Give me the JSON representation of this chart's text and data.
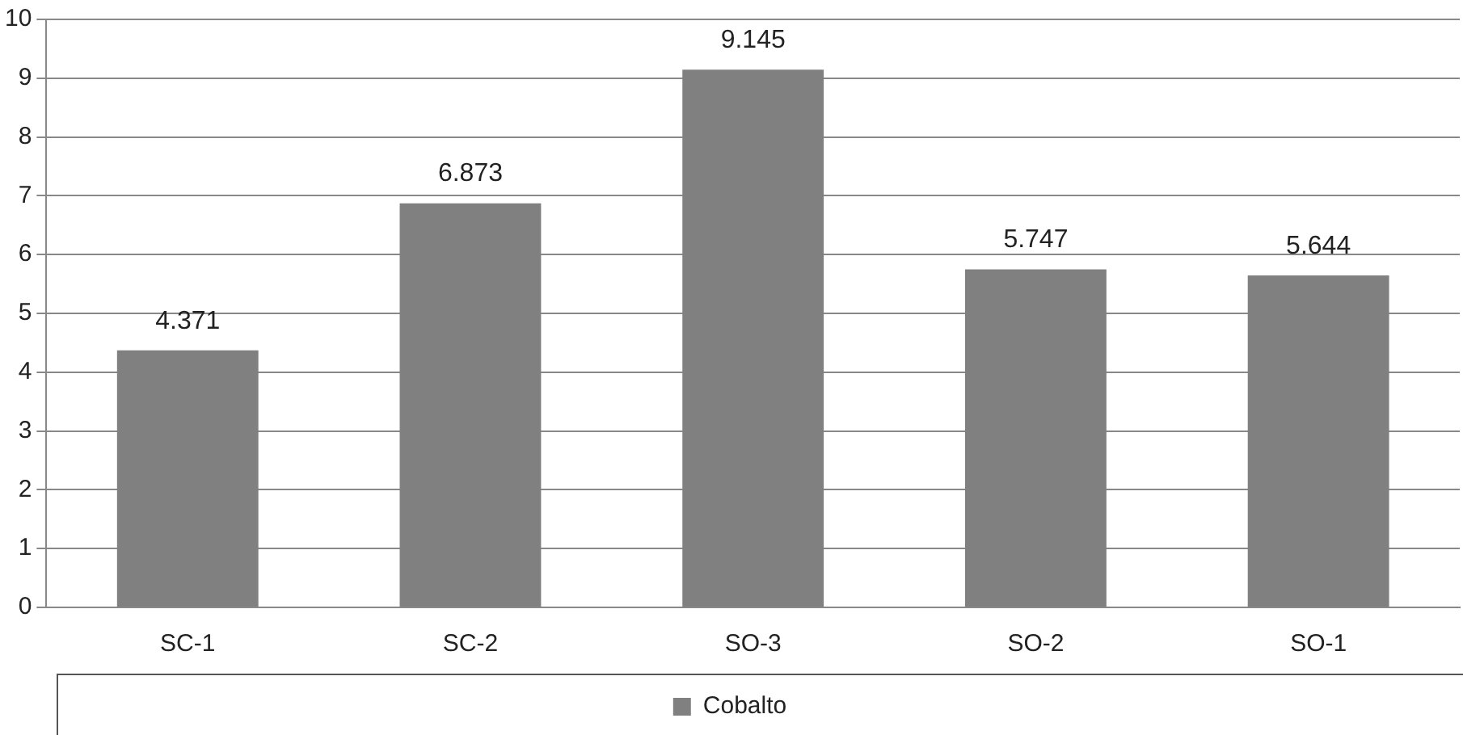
{
  "chart_data": {
    "type": "bar",
    "categories": [
      "SC-1",
      "SC-2",
      "SO-3",
      "SO-2",
      "SO-1"
    ],
    "series": [
      {
        "name": "Cobalto",
        "color": "#808080",
        "values": [
          4.371,
          6.873,
          9.145,
          5.747,
          5.644
        ]
      }
    ],
    "ylim": [
      0,
      10
    ],
    "yticks": [
      0,
      1,
      2,
      3,
      4,
      5,
      6,
      7,
      8,
      9,
      10
    ],
    "grid": "y",
    "legend": "bottom",
    "data_labels": true
  }
}
